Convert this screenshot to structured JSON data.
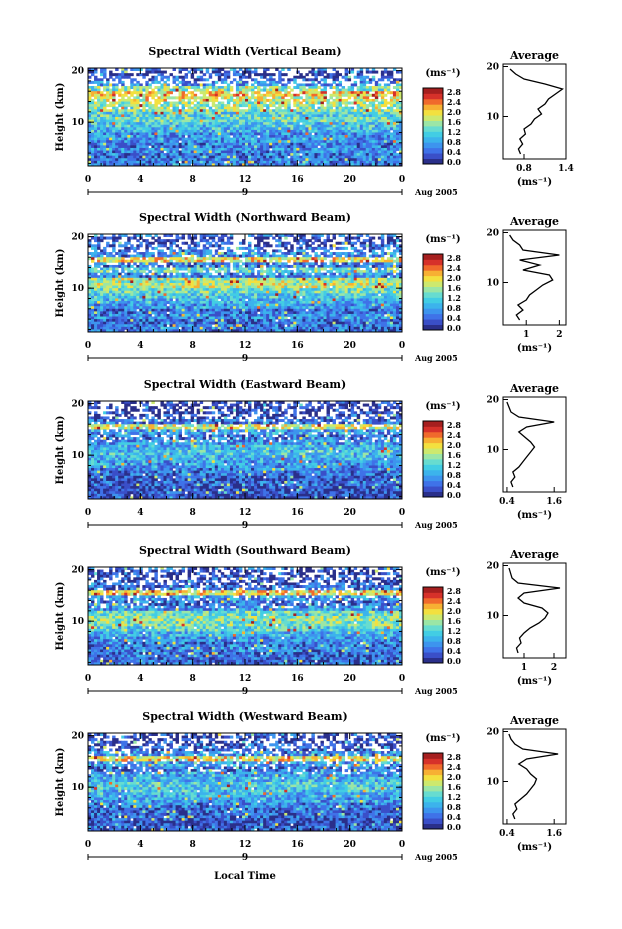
{
  "figure": {
    "xlabel": "Local Time",
    "date_label": "Aug 2005",
    "day_label": "9",
    "units_label": "(ms⁻¹)",
    "avg_title": "Average",
    "avg_xlabel": "(ms⁻¹)",
    "colormap": [
      "#2a2f8a",
      "#3a4fc8",
      "#3f72e8",
      "#3d94ee",
      "#3cb3ec",
      "#42cde4",
      "#67dcd0",
      "#9be6a6",
      "#cde96e",
      "#f3e03f",
      "#f7b033",
      "#f06a2c",
      "#d6312a",
      "#a61f1f"
    ]
  },
  "chart_data": [
    {
      "type": "heatmap",
      "title": "Spectral Width (Vertical Beam)",
      "ylabel": "Height (km)",
      "xlim": [
        0,
        24
      ],
      "ylim": [
        1.5,
        20.5
      ],
      "xticks": [
        "0",
        "4",
        "8",
        "12",
        "16",
        "20",
        "0"
      ],
      "yticks": [
        "10",
        "20"
      ],
      "colorbar_ticks": [
        "2.8",
        "2.4",
        "2.0",
        "1.6",
        "1.2",
        "0.8",
        "0.4",
        "0.0"
      ],
      "profile": {
        "xlim": [
          0.5,
          1.4
        ],
        "xticks": [
          "0.8",
          "1.4"
        ],
        "heights": [
          2.5,
          3.5,
          4.5,
          5.5,
          6.5,
          7.5,
          8.5,
          9.5,
          10.5,
          11.5,
          12.5,
          13.5,
          14.5,
          15.5,
          16.5,
          17.5,
          18.5,
          19.5
        ],
        "values": [
          0.75,
          0.72,
          0.78,
          0.74,
          0.82,
          0.8,
          0.9,
          0.95,
          1.05,
          1.0,
          1.1,
          1.15,
          1.25,
          1.35,
          1.1,
          0.8,
          0.68,
          0.6
        ]
      }
    },
    {
      "type": "heatmap",
      "title": "Spectral Width (Northward Beam)",
      "ylabel": "Height (km)",
      "xlim": [
        0,
        24
      ],
      "ylim": [
        1.5,
        20.5
      ],
      "xticks": [
        "0",
        "4",
        "8",
        "12",
        "16",
        "20",
        "0"
      ],
      "yticks": [
        "10",
        "20"
      ],
      "colorbar_ticks": [
        "2.8",
        "2.4",
        "2.0",
        "1.6",
        "1.2",
        "0.8",
        "0.4",
        "0.0"
      ],
      "profile": {
        "xlim": [
          0.3,
          2.2
        ],
        "xticks": [
          "1",
          "2"
        ],
        "heights": [
          2.5,
          3.5,
          4.5,
          5.5,
          6.5,
          7.5,
          8.5,
          9.5,
          10.5,
          11.5,
          12.5,
          13.5,
          14.5,
          15.5,
          16.5,
          17.5,
          18.5,
          19.5
        ],
        "values": [
          0.8,
          0.7,
          0.9,
          0.75,
          1.0,
          1.1,
          1.3,
          1.5,
          1.8,
          1.7,
          0.9,
          1.4,
          0.8,
          2.0,
          0.9,
          0.8,
          0.6,
          0.5
        ]
      }
    },
    {
      "type": "heatmap",
      "title": "Spectral Width (Eastward Beam)",
      "ylabel": "Height (km)",
      "xlim": [
        0,
        24
      ],
      "ylim": [
        1.5,
        20.5
      ],
      "xticks": [
        "0",
        "4",
        "8",
        "12",
        "16",
        "20",
        "0"
      ],
      "yticks": [
        "10",
        "20"
      ],
      "colorbar_ticks": [
        "2.8",
        "2.4",
        "2.0",
        "1.6",
        "1.2",
        "0.8",
        "0.4",
        "0.0"
      ],
      "profile": {
        "xlim": [
          0.3,
          1.9
        ],
        "xticks": [
          "0.4",
          "1.6"
        ],
        "heights": [
          2.5,
          3.5,
          4.5,
          5.5,
          6.5,
          7.5,
          8.5,
          9.5,
          10.5,
          11.5,
          12.5,
          13.5,
          14.5,
          15.5,
          16.5,
          17.5,
          18.5,
          19.5
        ],
        "values": [
          0.55,
          0.5,
          0.6,
          0.55,
          0.7,
          0.8,
          0.9,
          1.0,
          1.1,
          1.0,
          0.85,
          0.7,
          0.9,
          1.6,
          0.7,
          0.5,
          0.45,
          0.4
        ]
      }
    },
    {
      "type": "heatmap",
      "title": "Spectral Width (Southward Beam)",
      "ylabel": "Height (km)",
      "xlim": [
        0,
        24
      ],
      "ylim": [
        1.5,
        20.5
      ],
      "xticks": [
        "0",
        "4",
        "8",
        "12",
        "16",
        "20",
        "0"
      ],
      "yticks": [
        "10",
        "20"
      ],
      "colorbar_ticks": [
        "2.8",
        "2.4",
        "2.0",
        "1.6",
        "1.2",
        "0.8",
        "0.4",
        "0.0"
      ],
      "profile": {
        "xlim": [
          0.3,
          2.4
        ],
        "xticks": [
          "1",
          "2"
        ],
        "heights": [
          2.5,
          3.5,
          4.5,
          5.5,
          6.5,
          7.5,
          8.5,
          9.5,
          10.5,
          11.5,
          12.5,
          13.5,
          14.5,
          15.5,
          16.5,
          17.5,
          18.5,
          19.5
        ],
        "values": [
          0.8,
          0.75,
          0.9,
          0.85,
          1.0,
          1.2,
          1.5,
          1.7,
          1.8,
          1.6,
          1.0,
          0.8,
          1.0,
          2.2,
          0.8,
          0.6,
          0.55,
          0.5
        ]
      }
    },
    {
      "type": "heatmap",
      "title": "Spectral Width (Westward Beam)",
      "ylabel": "Height (km)",
      "xlim": [
        0,
        24
      ],
      "ylim": [
        1.5,
        20.5
      ],
      "xticks": [
        "0",
        "4",
        "8",
        "12",
        "16",
        "20",
        "0"
      ],
      "yticks": [
        "10",
        "20"
      ],
      "colorbar_ticks": [
        "2.8",
        "2.4",
        "2.0",
        "1.6",
        "1.2",
        "0.8",
        "0.4",
        "0.0"
      ],
      "profile": {
        "xlim": [
          0.3,
          1.9
        ],
        "xticks": [
          "0.4",
          "1.6"
        ],
        "heights": [
          2.5,
          3.5,
          4.5,
          5.5,
          6.5,
          7.5,
          8.5,
          9.5,
          10.5,
          11.5,
          12.5,
          13.5,
          14.5,
          15.5,
          16.5,
          17.5,
          18.5,
          19.5
        ],
        "values": [
          0.6,
          0.55,
          0.65,
          0.6,
          0.75,
          0.9,
          1.0,
          1.1,
          1.15,
          1.0,
          0.9,
          0.7,
          0.9,
          1.7,
          0.8,
          0.6,
          0.5,
          0.45
        ]
      }
    }
  ]
}
